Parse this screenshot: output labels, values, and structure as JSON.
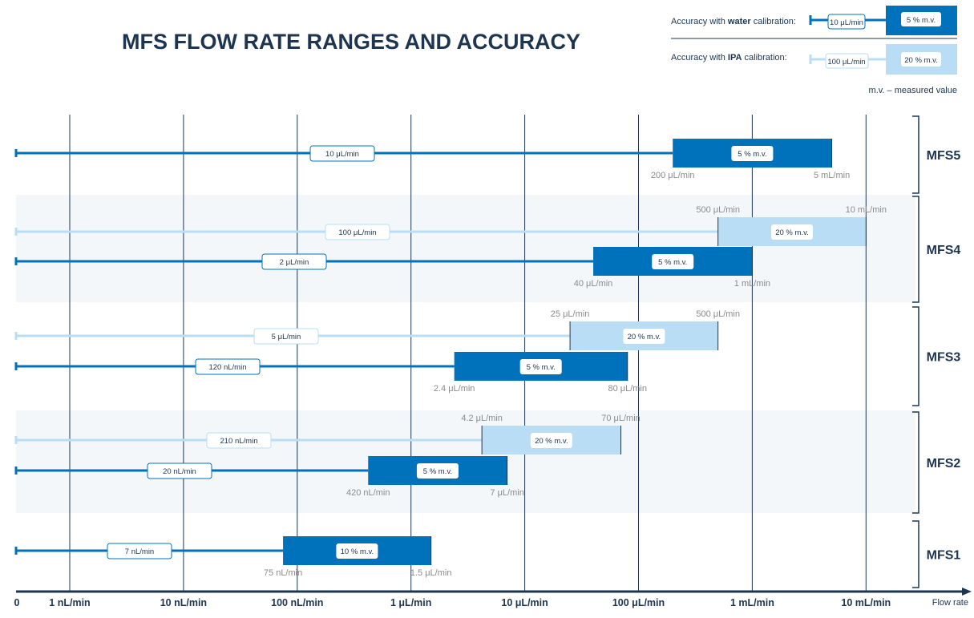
{
  "title": "MFS FLOW RATE RANGES AND ACCURACY",
  "legend": {
    "water_prefix": "Accuracy with ",
    "water_bold": "water",
    "water_suffix": " calibration:",
    "water_low": "10 μL/min",
    "water_acc": "5 % m.v.",
    "ipa_prefix": "Accuracy with ",
    "ipa_bold": "IPA",
    "ipa_suffix": " calibration:",
    "ipa_low": "100 μL/min",
    "ipa_acc": "20 % m.v.",
    "note": "m.v. – measured value"
  },
  "colors": {
    "water": "#0072bc",
    "ipa": "#b9ddf4",
    "text": "#1d3550",
    "band": "#f4f7fa"
  },
  "chart_data": {
    "type": "bar",
    "x_scale": "log",
    "x_unit": "nL/min",
    "x_ticks": [
      {
        "value": 0,
        "label": "0"
      },
      {
        "value": 1,
        "label": "1 nL/min"
      },
      {
        "value": 10,
        "label": "10 nL/min"
      },
      {
        "value": 100,
        "label": "100 nL/min"
      },
      {
        "value": 1000,
        "label": "1 μL/min"
      },
      {
        "value": 10000,
        "label": "10 μL/min"
      },
      {
        "value": 100000,
        "label": "100 μL/min"
      },
      {
        "value": 1000000,
        "label": "1 mL/min"
      },
      {
        "value": 10000000,
        "label": "10 mL/min"
      }
    ],
    "xlabel": "Flow rate",
    "sensors": [
      {
        "name": "MFS5",
        "series": [
          {
            "calibration": "water",
            "low_label": "10 μL/min",
            "acc_from": 200000,
            "acc_to": 5000000,
            "accuracy": "5 % m.v.",
            "from_label": "200 μL/min",
            "to_label": "5 mL/min"
          }
        ]
      },
      {
        "name": "MFS4",
        "series": [
          {
            "calibration": "IPA",
            "low_label": "100 μL/min",
            "acc_from": 500000,
            "acc_to": 10000000,
            "accuracy": "20 % m.v.",
            "from_label": "500  μL/min",
            "to_label": "10 mL/min"
          },
          {
            "calibration": "water",
            "low_label": "2 μL/min",
            "acc_from": 40000,
            "acc_to": 1000000,
            "accuracy": "5 % m.v.",
            "from_label": "40 μL/min",
            "to_label": "1 mL/min"
          }
        ]
      },
      {
        "name": "MFS3",
        "series": [
          {
            "calibration": "IPA",
            "low_label": "5 μL/min",
            "acc_from": 25000,
            "acc_to": 500000,
            "accuracy": "20 % m.v.",
            "from_label": "25 μL/min",
            "to_label": "500 μL/min"
          },
          {
            "calibration": "water",
            "low_label": "120 nL/min",
            "acc_from": 2400,
            "acc_to": 80000,
            "accuracy": "5 % m.v.",
            "from_label": "2.4 μL/min",
            "to_label": "80 μL/min"
          }
        ]
      },
      {
        "name": "MFS2",
        "series": [
          {
            "calibration": "IPA",
            "low_label": "210 nL/min",
            "acc_from": 4200,
            "acc_to": 70000,
            "accuracy": "20 % m.v.",
            "from_label": "4.2 μL/min",
            "to_label": "70 μL/min"
          },
          {
            "calibration": "water",
            "low_label": "20 nL/min",
            "acc_from": 420,
            "acc_to": 7000,
            "accuracy": "5 % m.v.",
            "from_label": "420 nL/min",
            "to_label": "7 μL/min"
          }
        ]
      },
      {
        "name": "MFS1",
        "series": [
          {
            "calibration": "water",
            "low_label": "7 nL/min",
            "acc_from": 75,
            "acc_to": 1500,
            "accuracy": "10 % m.v.",
            "from_label": "75 nL/min",
            "to_label": "1.5 μL/min"
          }
        ]
      }
    ]
  }
}
